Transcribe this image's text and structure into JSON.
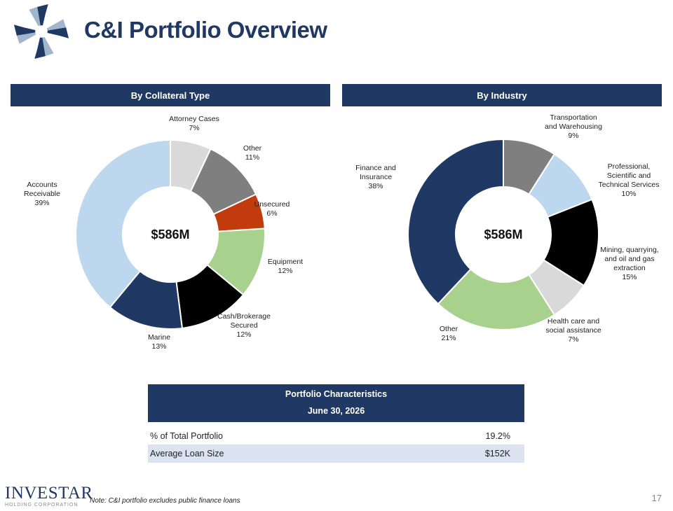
{
  "header": {
    "title": "C&I Portfolio Overview"
  },
  "sections": {
    "collateral_title": "By Collateral Type",
    "industry_title": "By Industry"
  },
  "colors": {
    "navy": "#1f3864"
  },
  "chart_data": [
    {
      "type": "pie",
      "center_label": "$586M",
      "slices": [
        {
          "label": [
            "Attorney Cases",
            "7%"
          ],
          "value": 7,
          "color": "#d9d9d9"
        },
        {
          "label": [
            "Other",
            "11%"
          ],
          "value": 11,
          "color": "#7f7f7f"
        },
        {
          "label": [
            "Unsecured",
            "6%"
          ],
          "value": 6,
          "color": "#c23b0c"
        },
        {
          "label": [
            "Equipment",
            "12%"
          ],
          "value": 12,
          "color": "#a9d18e"
        },
        {
          "label": [
            "Cash/Brokerage",
            "Secured",
            "12%"
          ],
          "value": 12,
          "color": "#000000"
        },
        {
          "label": [
            "Marine",
            "13%"
          ],
          "value": 13,
          "color": "#1f3864"
        },
        {
          "label": [
            "Accounts",
            "Receivable",
            "39%"
          ],
          "value": 39,
          "color": "#bdd7ee"
        }
      ]
    },
    {
      "type": "pie",
      "center_label": "$586M",
      "slices": [
        {
          "label": [
            "Transportation",
            "and Warehousing",
            "9%"
          ],
          "value": 9,
          "color": "#7f7f7f"
        },
        {
          "label": [
            "Professional,",
            "Scientific and",
            "Technical Services",
            "10%"
          ],
          "value": 10,
          "color": "#bdd7ee"
        },
        {
          "label": [
            "Mining, quarrying,",
            "and oil and gas",
            "extraction",
            "15%"
          ],
          "value": 15,
          "color": "#000000"
        },
        {
          "label": [
            "Health care and",
            "social assistance",
            "7%"
          ],
          "value": 7,
          "color": "#d9d9d9"
        },
        {
          "label": [
            "Other",
            "21%"
          ],
          "value": 21,
          "color": "#a9d18e"
        },
        {
          "label": [
            "Finance and",
            "Insurance",
            "38%"
          ],
          "value": 38,
          "color": "#1f3864"
        }
      ]
    }
  ],
  "table": {
    "title": "Portfolio Characteristics",
    "subtitle": "June 30, 2026",
    "rows": [
      {
        "label": "% of Total Portfolio",
        "value": "19.2%"
      },
      {
        "label": "Average Loan Size",
        "value": "$152K"
      }
    ]
  },
  "footer": {
    "brand": "INVESTAR",
    "brand_sub": "HOLDING CORPORATION",
    "note": "Note: C&I portfolio excludes public finance loans",
    "page_number": "17"
  }
}
